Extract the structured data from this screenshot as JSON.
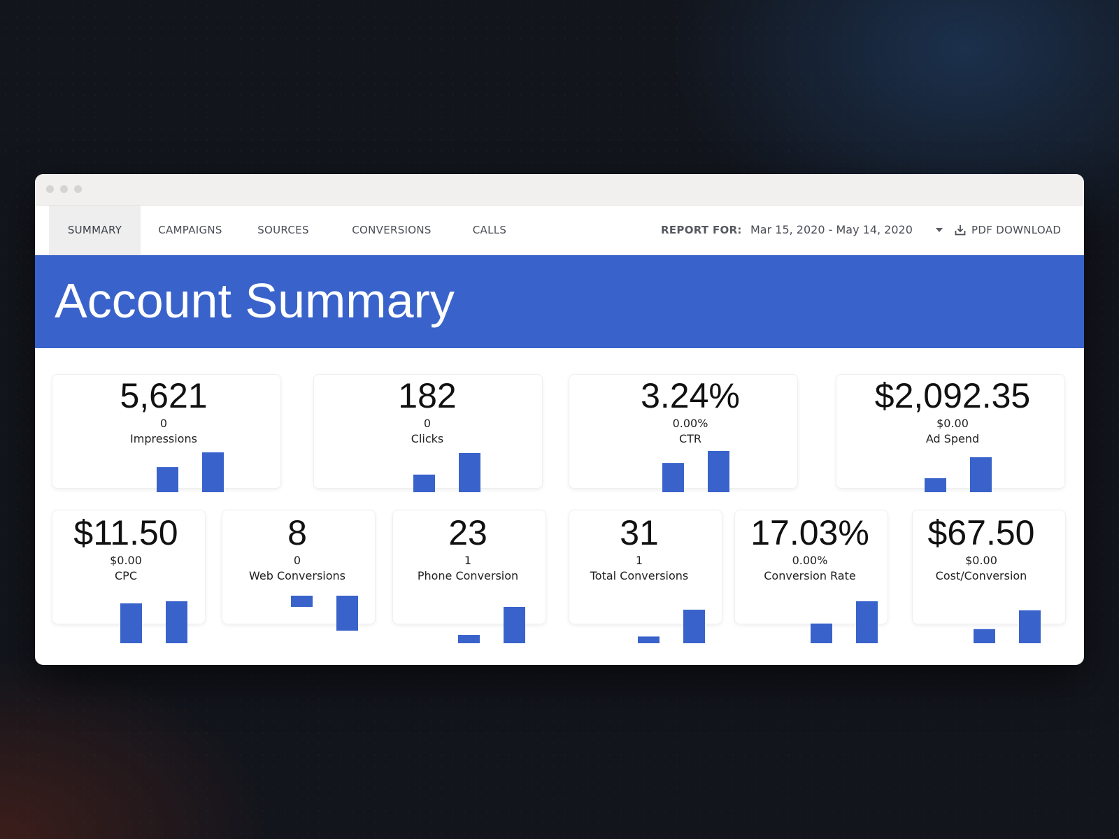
{
  "nav": {
    "tabs": [
      {
        "label": "SUMMARY",
        "active": true
      },
      {
        "label": "CAMPAIGNS",
        "active": false
      },
      {
        "label": "SOURCES",
        "active": false
      },
      {
        "label": "CONVERSIONS",
        "active": false
      },
      {
        "label": "CALLS",
        "active": false
      }
    ],
    "report_label": "REPORT FOR:",
    "date_range": "Mar 15, 2020 - May 14, 2020",
    "pdf_label": "PDF DOWNLOAD"
  },
  "hero": {
    "title": "Account Summary"
  },
  "accent_color": "#3963cb",
  "metrics": [
    {
      "value": "5,621",
      "previous": "0",
      "label": "Impressions",
      "bars": [
        0.63,
        1.0
      ]
    },
    {
      "value": "182",
      "previous": "0",
      "label": "Clicks",
      "bars": [
        0.45,
        1.0
      ]
    },
    {
      "value": "3.24%",
      "previous": "0.00%",
      "label": "CTR",
      "bars": [
        0.71,
        1.0
      ]
    },
    {
      "value": "$2,092.35",
      "previous": "$0.00",
      "label": "Ad Spend",
      "bars": [
        0.4,
        1.0
      ]
    },
    {
      "value": "$11.50",
      "previous": "$0.00",
      "label": "CPC",
      "bars": [
        0.95,
        1.0
      ]
    },
    {
      "value": "8",
      "previous": "0",
      "label": "Web Conversions",
      "bars": [
        0.28,
        1.0
      ]
    },
    {
      "value": "23",
      "previous": "1",
      "label": "Phone Conversion",
      "bars": [
        0.23,
        1.0
      ]
    },
    {
      "value": "31",
      "previous": "1",
      "label": "Total Conversions",
      "bars": [
        0.2,
        1.0
      ]
    },
    {
      "value": "17.03%",
      "previous": "0.00%",
      "label": "Conversion Rate",
      "bars": [
        0.47,
        1.0
      ]
    },
    {
      "value": "$67.50",
      "previous": "$0.00",
      "label": "Cost/Conversion",
      "bars": [
        0.43,
        1.0
      ]
    }
  ]
}
